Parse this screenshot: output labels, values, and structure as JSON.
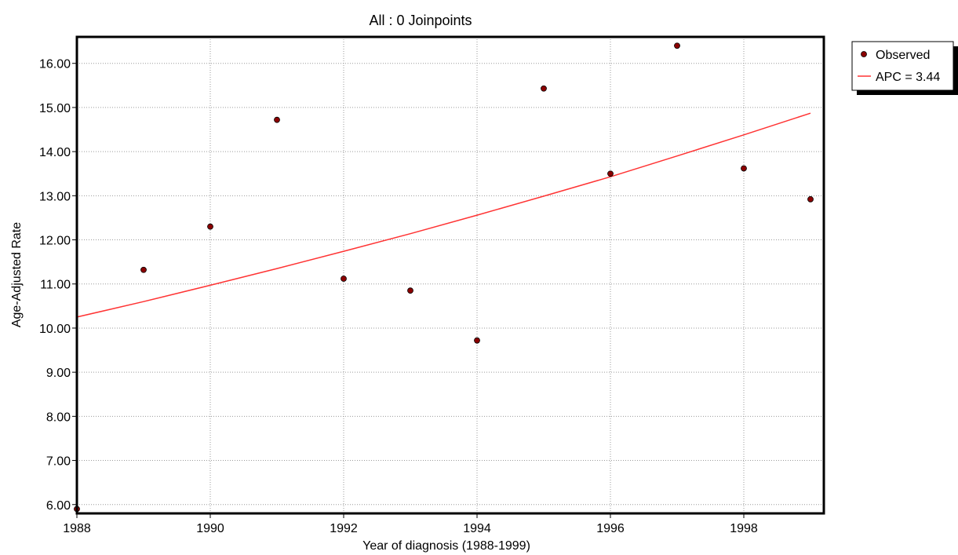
{
  "chart_data": {
    "type": "scatter",
    "title": "All : 0 Joinpoints",
    "xlabel": "Year of diagnosis (1988-1999)",
    "ylabel": "Age-Adjusted Rate",
    "xlim": [
      1988,
      1999.2
    ],
    "ylim": [
      5.8,
      16.6
    ],
    "xticks": [
      1988,
      1990,
      1992,
      1994,
      1996,
      1998
    ],
    "xtick_labels": [
      "1988",
      "1990",
      "1992",
      "1994",
      "1996",
      "1998"
    ],
    "yticks": [
      6,
      7,
      8,
      9,
      10,
      11,
      12,
      13,
      14,
      15,
      16
    ],
    "ytick_labels": [
      "6.00",
      "7.00",
      "8.00",
      "9.00",
      "10.00",
      "11.00",
      "12.00",
      "13.00",
      "14.00",
      "15.00",
      "16.00"
    ],
    "grid": true,
    "legend_position": "top-right, outside plot",
    "series": [
      {
        "name": "Observed",
        "kind": "scatter",
        "color": "#8b0000",
        "x": [
          1988,
          1989,
          1990,
          1991,
          1992,
          1993,
          1994,
          1995,
          1996,
          1997,
          1998,
          1999
        ],
        "y": [
          5.9,
          11.32,
          12.3,
          14.72,
          11.12,
          10.85,
          9.72,
          15.43,
          13.5,
          16.4,
          13.62,
          12.92
        ]
      },
      {
        "name": "APC = 3.44",
        "kind": "line",
        "color": "#ff3333",
        "x": [
          1988,
          1989,
          1990,
          1991,
          1992,
          1993,
          1994,
          1995,
          1996,
          1997,
          1998,
          1999
        ],
        "y": [
          10.25,
          10.6,
          10.97,
          11.35,
          11.74,
          12.14,
          12.56,
          12.99,
          13.43,
          13.9,
          14.38,
          14.87
        ]
      }
    ]
  }
}
